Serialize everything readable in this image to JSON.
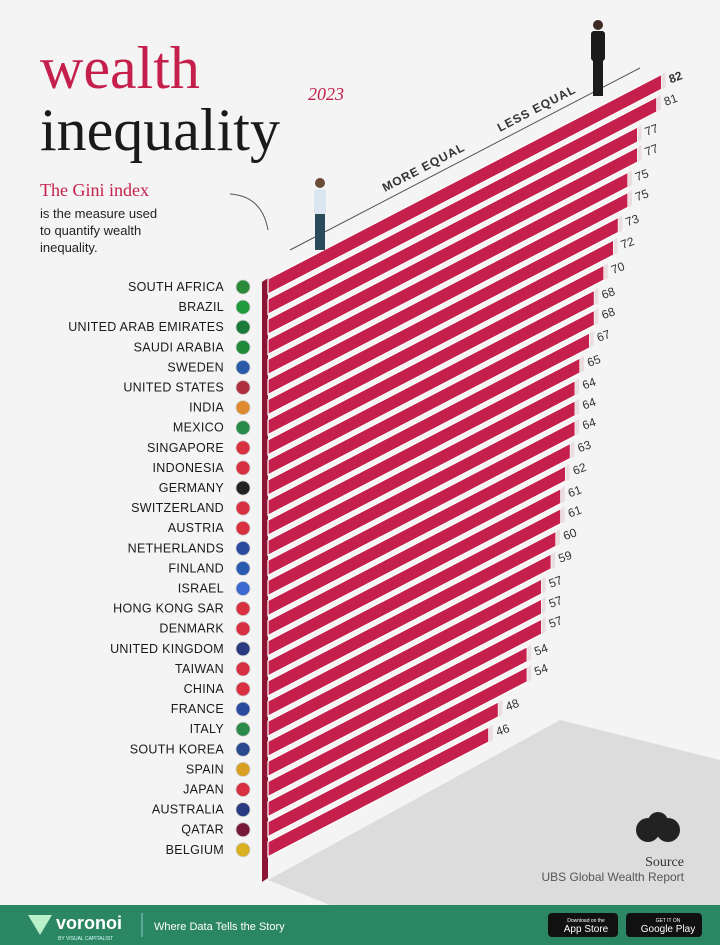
{
  "chart_data": {
    "type": "bar",
    "title": "wealth",
    "title_line2": "inequality",
    "subtitle": "2023",
    "annotation_heading": "The Gini index",
    "annotation_lines": [
      "is the measure used",
      "to quantify wealth",
      "inequality."
    ],
    "low_label": "MORE EQUAL",
    "high_label": "LESS EQUAL",
    "categories": [
      "SOUTH AFRICA",
      "BRAZIL",
      "UNITED ARAB EMIRATES",
      "SAUDI ARABIA",
      "SWEDEN",
      "UNITED STATES",
      "INDIA",
      "MEXICO",
      "SINGAPORE",
      "INDONESIA",
      "GERMANY",
      "SWITZERLAND",
      "AUSTRIA",
      "NETHERLANDS",
      "FINLAND",
      "ISRAEL",
      "HONG KONG SAR",
      "DENMARK",
      "UNITED KINGDOM",
      "TAIWAN",
      "CHINA",
      "FRANCE",
      "ITALY",
      "SOUTH KOREA",
      "SPAIN",
      "JAPAN",
      "AUSTRALIA",
      "QATAR",
      "BELGIUM"
    ],
    "values": [
      82,
      81,
      77,
      77,
      75,
      75,
      73,
      72,
      70,
      68,
      68,
      67,
      65,
      64,
      64,
      64,
      63,
      62,
      61,
      61,
      60,
      59,
      57,
      57,
      57,
      54,
      54,
      48,
      46
    ],
    "color": "#c51f4b",
    "source_heading": "Source",
    "source": "UBS Global Wealth Report"
  },
  "footer": {
    "brand": "voronoi",
    "brand_sub": "BY VISUAL CAPITALIST",
    "tagline": "Where Data Tells the Story",
    "app_store_small": "Download on the",
    "app_store": "App Store",
    "google_play_small": "GET IT ON",
    "google_play": "Google Play"
  }
}
